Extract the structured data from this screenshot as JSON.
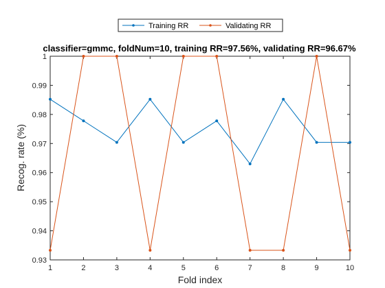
{
  "chart_data": {
    "type": "line",
    "title": "classifier=gmmc, foldNum=10, training RR=97.56%, validating RR=96.67%",
    "xlabel": "Fold index",
    "ylabel": "Recog. rate (%)",
    "xlim": [
      1,
      10
    ],
    "ylim": [
      0.93,
      1.0
    ],
    "xticks": [
      1,
      2,
      3,
      4,
      5,
      6,
      7,
      8,
      9,
      10
    ],
    "yticks": [
      0.93,
      0.94,
      0.95,
      0.96,
      0.97,
      0.98,
      0.99,
      1
    ],
    "ytick_labels": [
      "0.93",
      "0.94",
      "0.95",
      "0.96",
      "0.97",
      "0.98",
      "0.99",
      "1"
    ],
    "grid": false,
    "legend_position": "top-center outside",
    "x": [
      1,
      2,
      3,
      4,
      5,
      6,
      7,
      8,
      9,
      10
    ],
    "series": [
      {
        "name": "Training RR",
        "color": "#0072BD",
        "marker": "dot",
        "values": [
          0.9852,
          0.9778,
          0.9704,
          0.9852,
          0.9704,
          0.9778,
          0.963,
          0.9852,
          0.9704,
          0.9704
        ]
      },
      {
        "name": "Validating RR",
        "color": "#D95319",
        "marker": "dot",
        "values": [
          0.9333,
          1.0,
          1.0,
          0.9333,
          1.0,
          1.0,
          0.9333,
          0.9333,
          1.0,
          0.9333
        ]
      }
    ]
  }
}
